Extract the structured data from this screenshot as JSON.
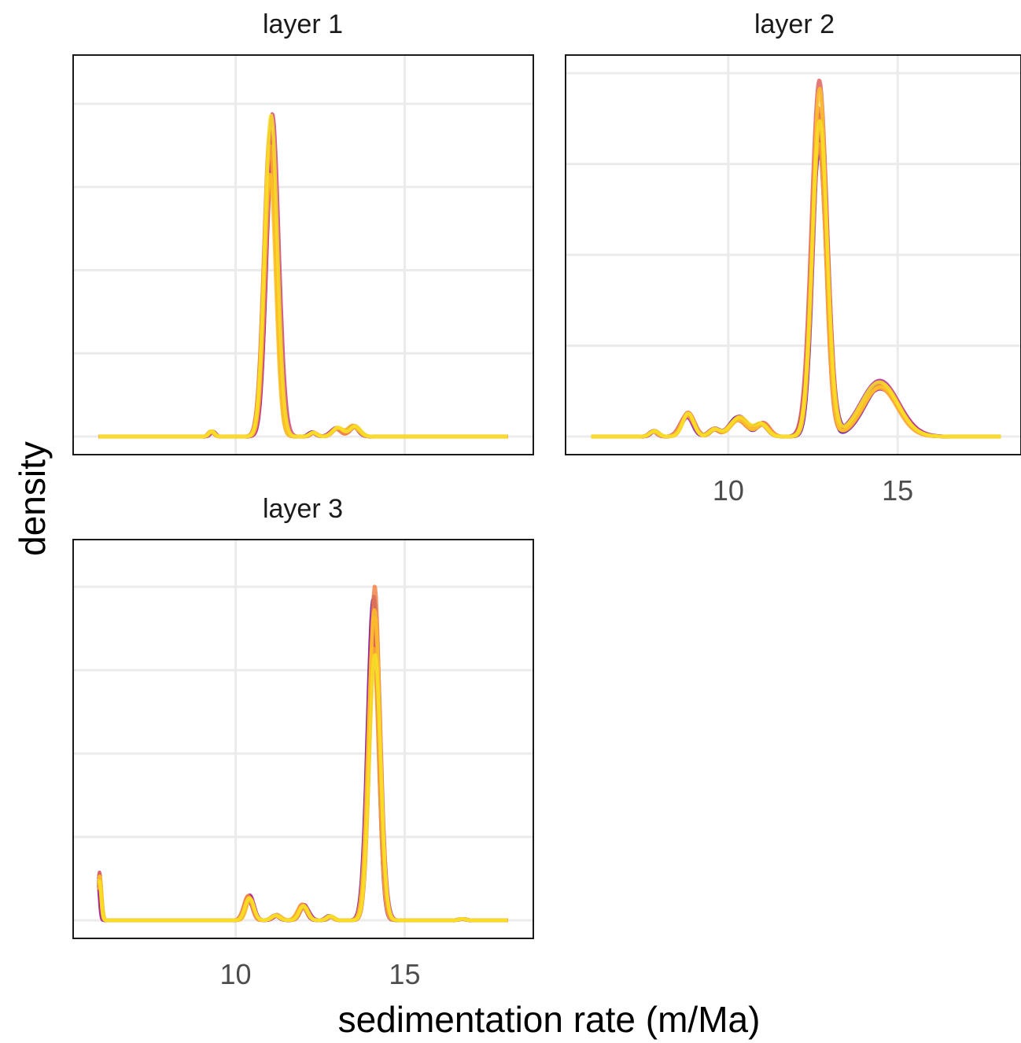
{
  "chart_data": {
    "type": "line",
    "xlabel": "sedimentation rate (m/Ma)",
    "ylabel": "density",
    "xlim": [
      5.8,
      18.2
    ],
    "x_ticks": [
      "10",
      "15"
    ],
    "x_tick_values": [
      10,
      15
    ],
    "grid": true,
    "legend": "none",
    "y_tick_labels": "none",
    "colors": {
      "panel_border": "#1a1a1a",
      "grid": "#ebebeb",
      "palette": [
        "#5b02a3",
        "#8a0aa5",
        "#b02a90",
        "#cc4778",
        "#e16462",
        "#f1844b",
        "#fca636",
        "#fdc328",
        "#f7e225"
      ]
    },
    "panels": [
      {
        "title": "layer 1",
        "show_x_ticks": false,
        "ylim": [
          0,
          1.09
        ],
        "y_gridlines": [
          0,
          0.25,
          0.5,
          0.75,
          1.0
        ],
        "ensemble_size": 12,
        "ensemble_spread": 0.12,
        "peaks": [
          {
            "x": 11.05,
            "height": 0.88,
            "sd": 0.18
          },
          {
            "x": 9.3,
            "height": 0.015,
            "sd": 0.08
          },
          {
            "x": 12.3,
            "height": 0.012,
            "sd": 0.1
          },
          {
            "x": 13.0,
            "height": 0.025,
            "sd": 0.15
          },
          {
            "x": 13.5,
            "height": 0.03,
            "sd": 0.15
          }
        ]
      },
      {
        "title": "layer 2",
        "show_x_ticks": true,
        "ylim": [
          0,
          1.02
        ],
        "y_gridlines": [
          0,
          0.25,
          0.5,
          0.75,
          1.0
        ],
        "ensemble_size": 12,
        "ensemble_spread": 0.12,
        "peaks": [
          {
            "x": 12.7,
            "height": 0.88,
            "sd": 0.22
          },
          {
            "x": 14.5,
            "height": 0.14,
            "sd": 0.55
          },
          {
            "x": 8.8,
            "height": 0.06,
            "sd": 0.18
          },
          {
            "x": 10.3,
            "height": 0.05,
            "sd": 0.25
          },
          {
            "x": 11.0,
            "height": 0.035,
            "sd": 0.18
          },
          {
            "x": 7.8,
            "height": 0.015,
            "sd": 0.12
          },
          {
            "x": 9.6,
            "height": 0.02,
            "sd": 0.15
          }
        ]
      },
      {
        "title": "layer 3",
        "show_x_ticks": true,
        "ylim": [
          0,
          1.09
        ],
        "y_gridlines": [
          0,
          0.25,
          0.5,
          0.75,
          1.0
        ],
        "ensemble_size": 12,
        "ensemble_spread": 0.12,
        "peaks": [
          {
            "x": 14.1,
            "height": 0.9,
            "sd": 0.17
          },
          {
            "x": 10.4,
            "height": 0.07,
            "sd": 0.12
          },
          {
            "x": 12.0,
            "height": 0.045,
            "sd": 0.13
          },
          {
            "x": 11.2,
            "height": 0.015,
            "sd": 0.12
          },
          {
            "x": 12.8,
            "height": 0.012,
            "sd": 0.1
          },
          {
            "x": 5.95,
            "height": 0.13,
            "sd": 0.05
          },
          {
            "x": 16.7,
            "height": 0.004,
            "sd": 0.1
          }
        ]
      }
    ]
  }
}
